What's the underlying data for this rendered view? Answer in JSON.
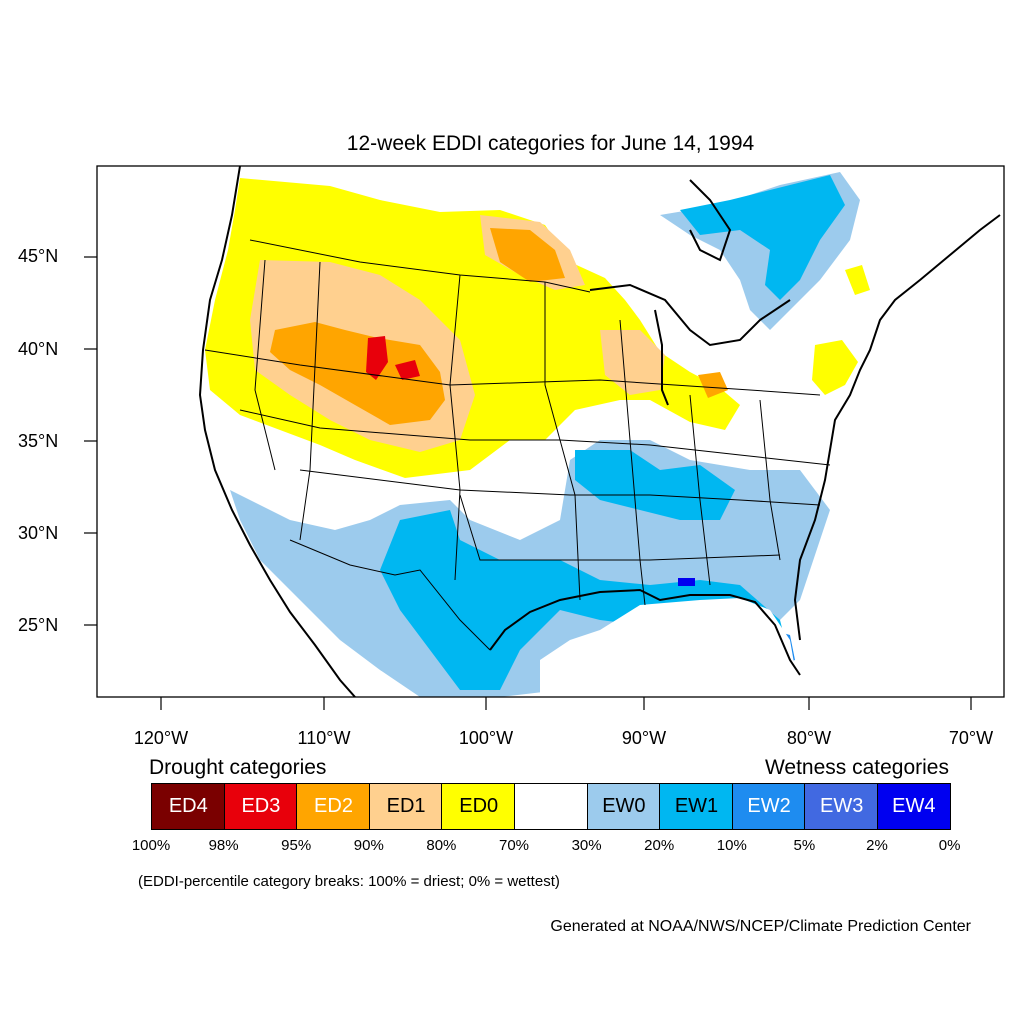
{
  "title": "12-week EDDI categories for June 14, 1994",
  "latitude_labels": [
    "45°N",
    "40°N",
    "35°N",
    "30°N",
    "25°N"
  ],
  "longitude_labels": [
    "120°W",
    "110°W",
    "100°W",
    "90°W",
    "80°W",
    "70°W"
  ],
  "legend": {
    "drought_heading": "Drought categories",
    "wetness_heading": "Wetness categories",
    "categories": [
      {
        "label": "ED4",
        "color": "#7a0000",
        "text_color": "#ffffff"
      },
      {
        "label": "ED3",
        "color": "#e8000b",
        "text_color": "#ffffff"
      },
      {
        "label": "ED2",
        "color": "#ffa500",
        "text_color": "#ffffff"
      },
      {
        "label": "ED1",
        "color": "#ffd08f",
        "text_color": "#000000"
      },
      {
        "label": "ED0",
        "color": "#ffff00",
        "text_color": "#000000"
      },
      {
        "label": "",
        "color": "#ffffff",
        "text_color": "#000000"
      },
      {
        "label": "EW0",
        "color": "#9ccbed",
        "text_color": "#000000"
      },
      {
        "label": "EW1",
        "color": "#00b7f1",
        "text_color": "#000000"
      },
      {
        "label": "EW2",
        "color": "#1e8cf0",
        "text_color": "#ffffff"
      },
      {
        "label": "EW3",
        "color": "#4169e1",
        "text_color": "#ffffff"
      },
      {
        "label": "EW4",
        "color": "#0000f0",
        "text_color": "#ffffff"
      }
    ],
    "breaks": [
      "100%",
      "98%",
      "95%",
      "90%",
      "80%",
      "70%",
      "30%",
      "20%",
      "10%",
      "5%",
      "2%",
      "0%"
    ]
  },
  "note": "(EDDI-percentile category breaks: 100% = driest; 0% = wettest)",
  "credit": "Generated at NOAA/NWS/NCEP/Climate Prediction Center"
}
